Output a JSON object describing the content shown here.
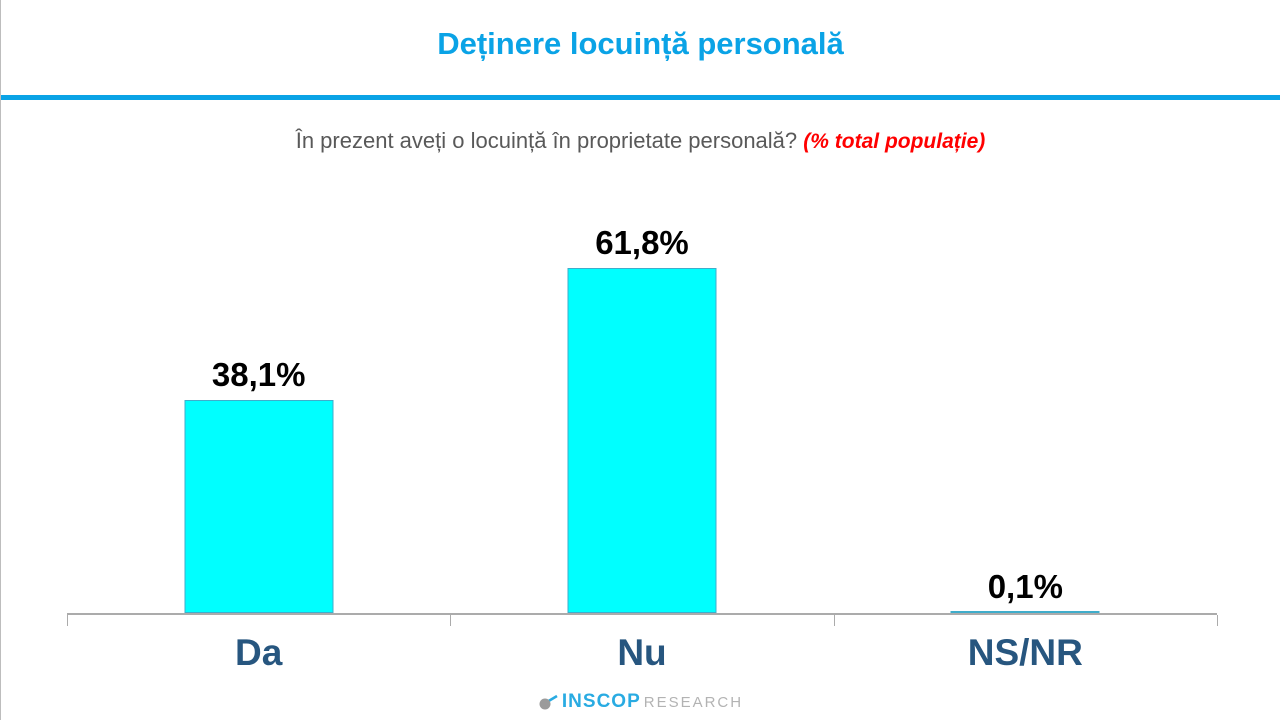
{
  "header": {
    "title": "Deținere locuință personală",
    "accent_color": "#0aa3e6"
  },
  "subtitle": {
    "question": "În prezent aveți o locuință în proprietate personală?",
    "note": "(% total populație)",
    "note_color": "#ff0000"
  },
  "chart_data": {
    "type": "bar",
    "categories": [
      "Da",
      "Nu",
      "NS/NR"
    ],
    "values": [
      38.1,
      61.8,
      0.1
    ],
    "value_labels": [
      "38,1%",
      "61,8%",
      "0,1%"
    ],
    "title": "Deținere locuință personală",
    "xlabel": "",
    "ylabel": "",
    "ylim": [
      0,
      70
    ],
    "grid": false,
    "legend": false,
    "bar_fill": "#00ffff",
    "bar_border": "#3fadcb",
    "value_label_color": "#000000",
    "category_label_color": "#27567f",
    "axis_color": "#ababab"
  },
  "footer": {
    "logo_primary": "INSCOP",
    "logo_secondary": "RESEARCH",
    "logo_primary_color": "#29abe2",
    "logo_secondary_color": "#b3b3b3"
  }
}
